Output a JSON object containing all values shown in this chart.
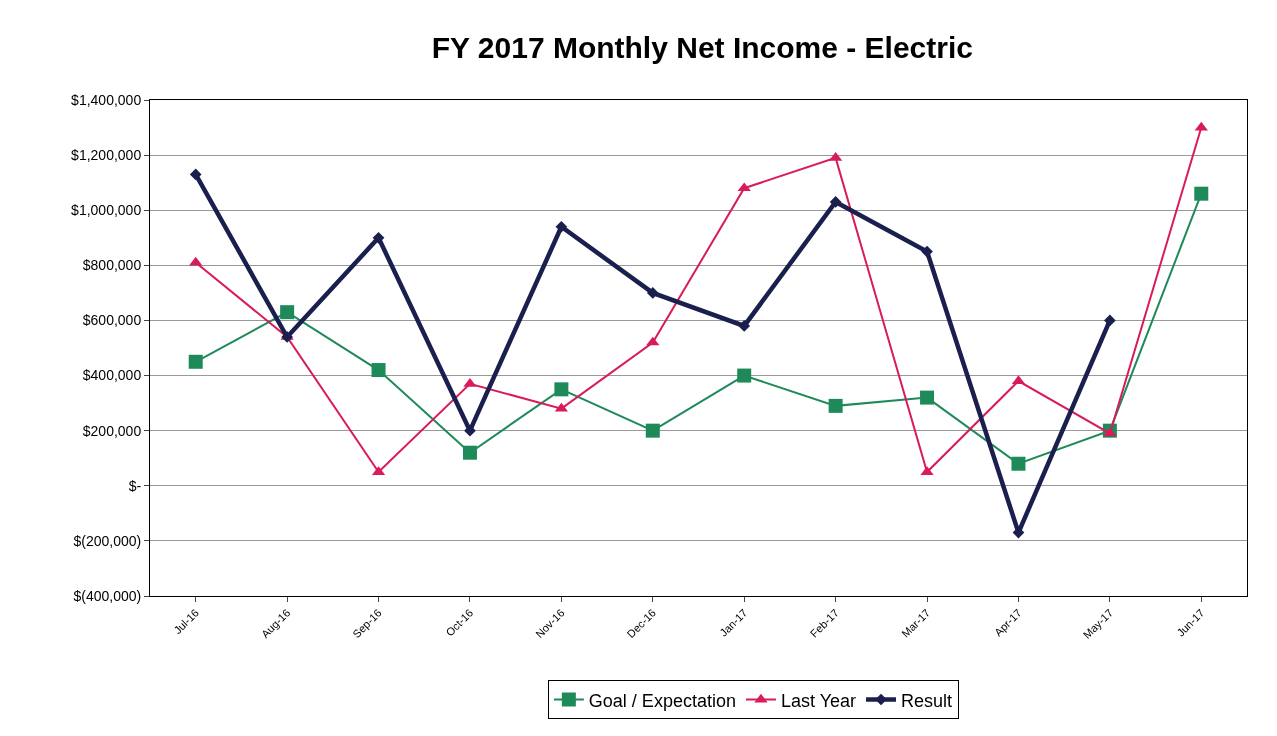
{
  "chart_data": {
    "type": "line",
    "title": "FY 2017 Monthly Net Income - Electric",
    "categories": [
      "Jul-16",
      "Aug-16",
      "Sep-16",
      "Oct-16",
      "Nov-16",
      "Dec-16",
      "Jan-17",
      "Feb-17",
      "Mar-17",
      "Apr-17",
      "May-17",
      "Jun-17"
    ],
    "series": [
      {
        "name": "Goal / Expectation",
        "color": "#1e8a5a",
        "marker": "square",
        "values": [
          450000,
          630000,
          420000,
          120000,
          350000,
          200000,
          400000,
          290000,
          320000,
          80000,
          200000,
          1060000
        ]
      },
      {
        "name": "Last Year",
        "color": "#d81b5a",
        "marker": "triangle",
        "values": [
          810000,
          540000,
          50000,
          370000,
          280000,
          520000,
          1080000,
          1190000,
          50000,
          380000,
          190000,
          1300000
        ]
      },
      {
        "name": "Result",
        "color": "#1a1f4e",
        "marker": "diamond",
        "values": [
          1130000,
          540000,
          900000,
          200000,
          940000,
          700000,
          580000,
          1030000,
          850000,
          -170000,
          600000,
          null
        ]
      }
    ],
    "ylim": [
      -400000,
      1400000
    ],
    "yticks": [
      {
        "value": -400000,
        "label": "$(400,000)"
      },
      {
        "value": -200000,
        "label": "$(200,000)"
      },
      {
        "value": 0,
        "label": "$-"
      },
      {
        "value": 200000,
        "label": "$200,000"
      },
      {
        "value": 400000,
        "label": "$400,000"
      },
      {
        "value": 600000,
        "label": "$600,000"
      },
      {
        "value": 800000,
        "label": "$800,000"
      },
      {
        "value": 1000000,
        "label": "$1,000,000"
      },
      {
        "value": 1200000,
        "label": "$1,200,000"
      },
      {
        "value": 1400000,
        "label": "$1,400,000"
      }
    ],
    "grid": "y",
    "legend": "bottom"
  }
}
